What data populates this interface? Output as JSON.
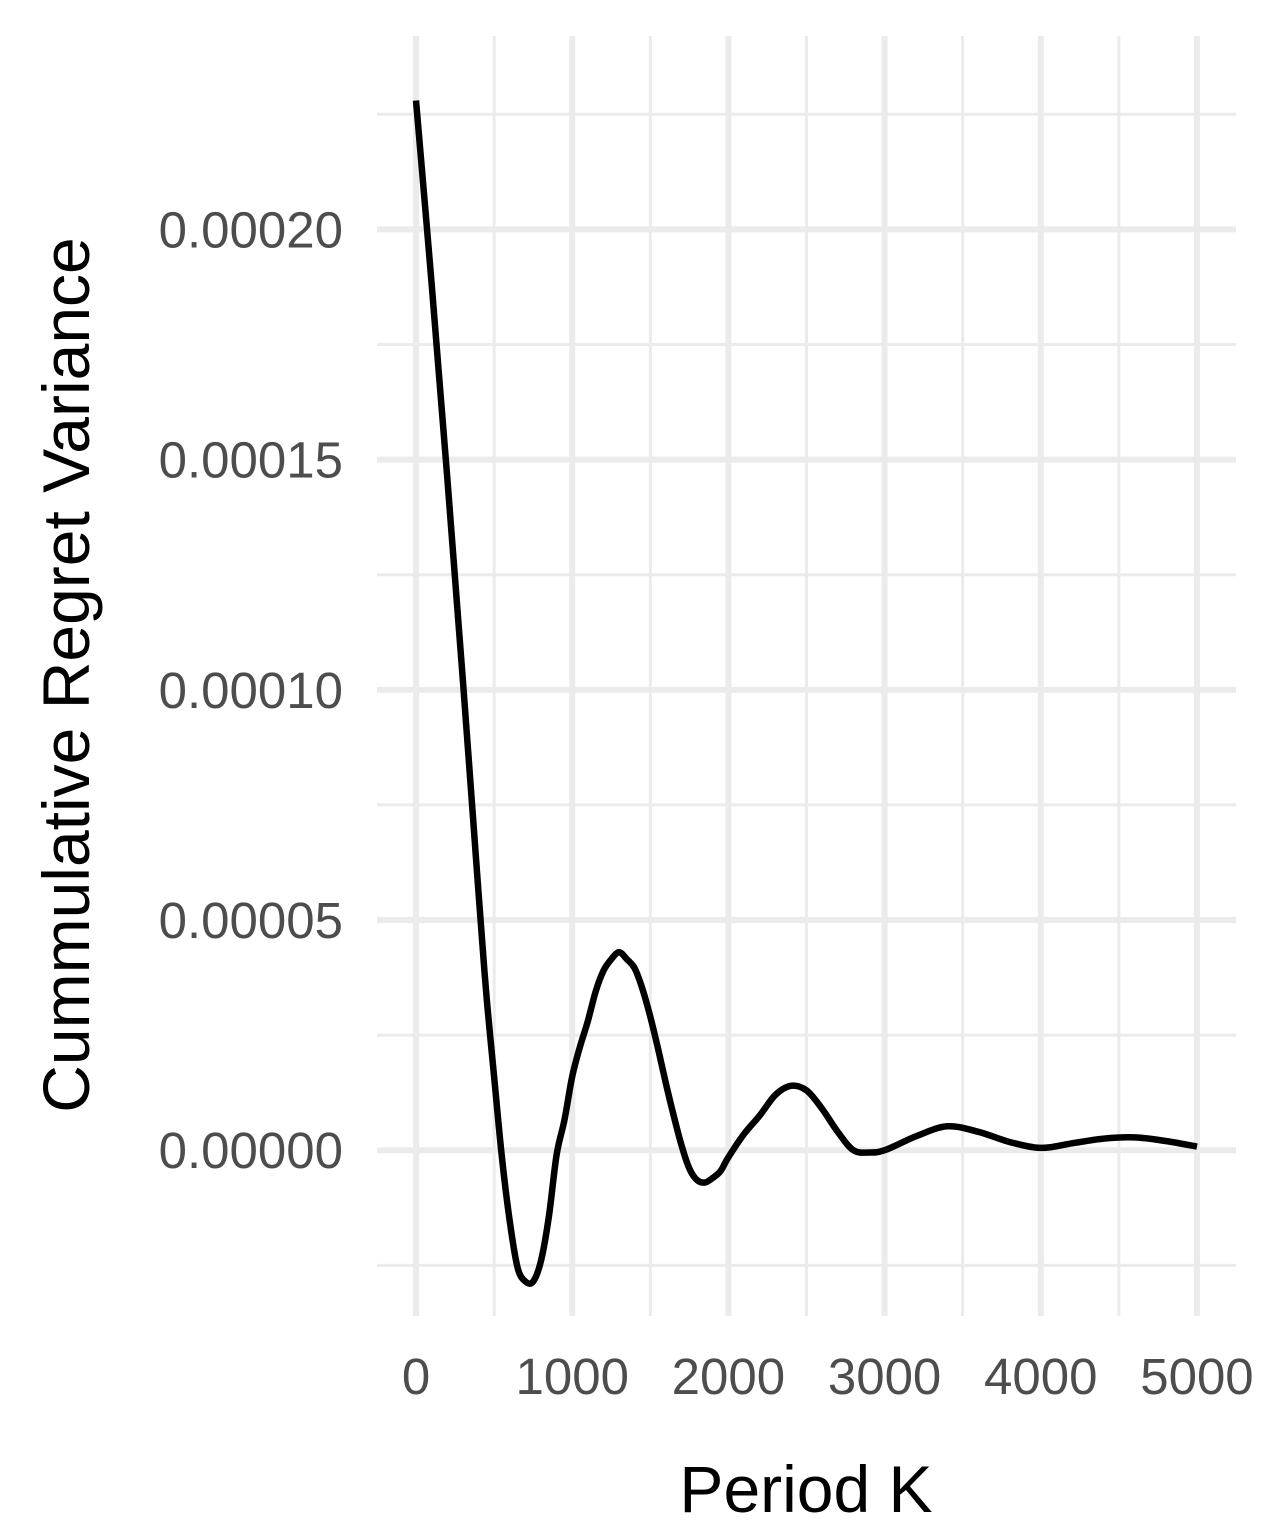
{
  "chart_data": {
    "type": "line",
    "title": "",
    "xlabel": "Period K",
    "ylabel": "Cummulative Regret Variance",
    "xlim": [
      -250,
      5250
    ],
    "ylim": [
      -3.6e-05,
      0.000242
    ],
    "x_ticks": [
      0,
      1000,
      2000,
      3000,
      4000,
      5000
    ],
    "x_tick_labels": [
      "0",
      "1000",
      "2000",
      "3000",
      "4000",
      "5000"
    ],
    "x_minor_ticks": [
      500,
      1500,
      2500,
      3500,
      4500
    ],
    "y_ticks": [
      0,
      5e-05,
      0.0001,
      0.00015,
      0.0002
    ],
    "y_tick_labels": [
      "0.00000",
      "0.00005",
      "0.00010",
      "0.00015",
      "0.00020"
    ],
    "y_minor_ticks": [
      -2.5e-05,
      2.5e-05,
      7.5e-05,
      0.000125,
      0.000175,
      0.000225
    ],
    "grid": true,
    "legend": "none",
    "colors": {
      "line": "#000000",
      "grid": "#ebebeb",
      "tick_label": "#4d4d4d",
      "axis_title": "#000000"
    },
    "series": [
      {
        "x": [
          0,
          100,
          200,
          300,
          400,
          450,
          500,
          550,
          600,
          650,
          700,
          750,
          800,
          850,
          900,
          950,
          1000,
          1050,
          1100,
          1150,
          1200,
          1250,
          1300,
          1350,
          1400,
          1450,
          1500,
          1550,
          1600,
          1650,
          1700,
          1750,
          1800,
          1850,
          1900,
          1950,
          2000,
          2100,
          2200,
          2300,
          2400,
          2500,
          2600,
          2700,
          2800,
          2900,
          3000,
          3200,
          3400,
          3600,
          3800,
          4000,
          4200,
          4400,
          4600,
          4800,
          5000
        ],
        "y": [
          0.000228,
          0.000188,
          0.000146,
          0.000102,
          5.6e-05,
          3.4e-05,
          1.6e-05,
          -1.5e-06,
          -1.55e-05,
          -2.55e-05,
          -2.85e-05,
          -2.85e-05,
          -2.4e-05,
          -1.45e-05,
          -1e-06,
          6.5e-06,
          1.6e-05,
          2.25e-05,
          2.8e-05,
          3.45e-05,
          3.9e-05,
          4.15e-05,
          4.3e-05,
          4.15e-05,
          3.95e-05,
          3.5e-05,
          2.9e-05,
          2.2e-05,
          1.45e-05,
          7.5e-06,
          1e-06,
          -4e-06,
          -6.5e-06,
          -7e-06,
          -6e-06,
          -4.5e-06,
          -1.5e-06,
          3.5e-06,
          7.5e-06,
          1.2e-05,
          1.4e-05,
          1.3e-05,
          9e-06,
          4e-06,
          0.0,
          -5e-07,
          0.0,
          3e-06,
          5.2e-06,
          4e-06,
          1.8e-06,
          5e-07,
          1.5e-06,
          2.5e-06,
          2.8e-06,
          2e-06,
          8e-07
        ]
      }
    ]
  }
}
